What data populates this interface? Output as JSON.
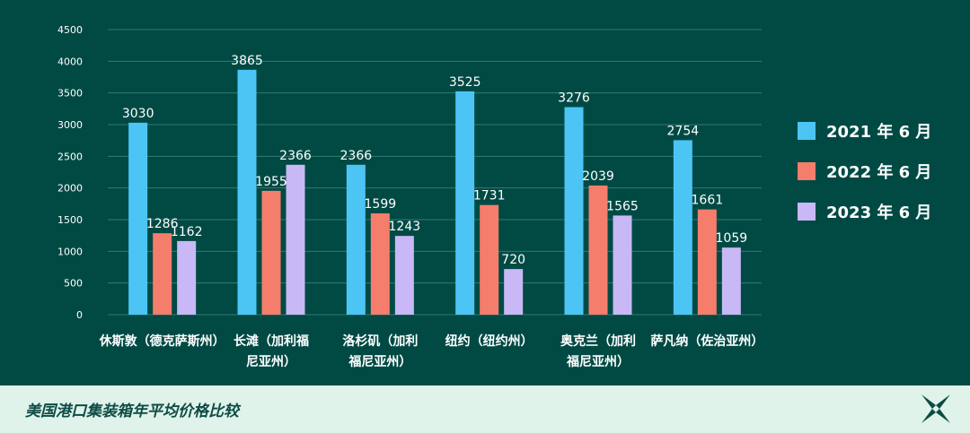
{
  "chart_data": {
    "type": "bar",
    "categories": [
      [
        "休斯敦（德克萨斯州）"
      ],
      [
        "长滩（加利福",
        "尼亚州）"
      ],
      [
        "洛杉矶（加利",
        "福尼亚州）"
      ],
      [
        "纽约（纽约州）"
      ],
      [
        "奥克兰（加利",
        "福尼亚州）"
      ],
      [
        "萨凡纳（佐治亚州）"
      ]
    ],
    "series": [
      {
        "name": "2021 年 6 月",
        "color": "#4cc5f5",
        "values": [
          3030,
          3865,
          2366,
          3525,
          3276,
          2754
        ]
      },
      {
        "name": "2022 年 6 月",
        "color": "#f57d6c",
        "values": [
          1286,
          1955,
          1599,
          1731,
          2039,
          1661
        ]
      },
      {
        "name": "2023 年 6 月",
        "color": "#c8b8f5",
        "values": [
          1162,
          2366,
          1243,
          720,
          1565,
          1059
        ]
      }
    ],
    "yticks": [
      0,
      500,
      1000,
      1500,
      2000,
      2500,
      3000,
      3500,
      4000,
      4500
    ],
    "ylim": [
      0,
      4500
    ],
    "grid": true,
    "legend_position": "right"
  },
  "footer": {
    "title": "美国港口集装箱年平均价格比较",
    "logo_icon": "x-star-logo-icon"
  }
}
